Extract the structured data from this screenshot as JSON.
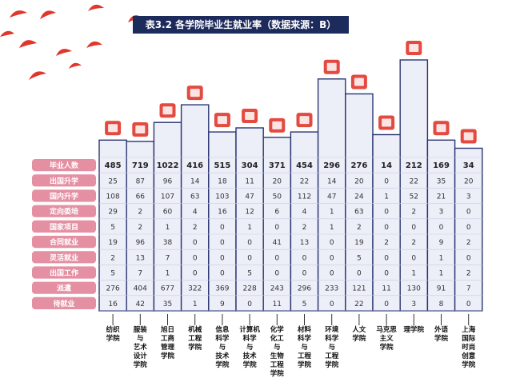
{
  "title": "表3.2 各学院毕业生就业率（数据来源：B）",
  "chart_data": {
    "type": "table",
    "title": "表3.2 各学院毕业生就业率（数据来源：B）",
    "categories": [
      "纺织\n学院",
      "服装\n与\n艺术\n设计\n学院",
      "旭日\n工商\n管理\n学院",
      "机械\n工程\n学院",
      "信息\n科学\n与\n技术\n学院",
      "计算机\n科学\n与\n技术\n学院",
      "化学\n化工\n与\n生物\n工程\n学院",
      "材料\n科学\n与\n工程\n学院",
      "环境\n科学\n与\n工程\n学院",
      "人文\n学院",
      "马克思\n主义\n学院",
      "理学院",
      "外语\n学院",
      "上海\n国际\n时尚\n创意\n学院"
    ],
    "rows": [
      {
        "name": "毕业人数",
        "values": [
          485,
          719,
          1022,
          416,
          515,
          304,
          371,
          454,
          296,
          276,
          14,
          212,
          169,
          34
        ]
      },
      {
        "name": "出国升学",
        "values": [
          25,
          87,
          96,
          14,
          18,
          11,
          20,
          22,
          14,
          20,
          0,
          22,
          35,
          20
        ]
      },
      {
        "name": "国内升学",
        "values": [
          108,
          66,
          107,
          63,
          103,
          47,
          50,
          112,
          47,
          24,
          1,
          52,
          21,
          3
        ]
      },
      {
        "name": "定向委培",
        "values": [
          29,
          2,
          60,
          4,
          16,
          12,
          6,
          4,
          1,
          63,
          0,
          2,
          3,
          0
        ]
      },
      {
        "name": "国家项目",
        "values": [
          5,
          2,
          1,
          2,
          0,
          1,
          0,
          2,
          1,
          2,
          0,
          0,
          0,
          0
        ]
      },
      {
        "name": "合同就业",
        "values": [
          19,
          96,
          38,
          0,
          0,
          0,
          41,
          13,
          0,
          19,
          2,
          2,
          9,
          2
        ]
      },
      {
        "name": "灵活就业",
        "values": [
          2,
          13,
          7,
          0,
          0,
          0,
          0,
          0,
          0,
          5,
          0,
          0,
          1,
          0
        ]
      },
      {
        "name": "出国工作",
        "values": [
          5,
          7,
          1,
          0,
          0,
          5,
          0,
          0,
          0,
          0,
          0,
          1,
          1,
          2
        ]
      },
      {
        "name": "派遣",
        "values": [
          276,
          404,
          677,
          322,
          369,
          228,
          243,
          296,
          233,
          121,
          11,
          130,
          91,
          7
        ]
      },
      {
        "name": "待就业",
        "values": [
          16,
          42,
          35,
          1,
          9,
          0,
          11,
          5,
          0,
          22,
          0,
          3,
          8,
          0
        ]
      }
    ],
    "column_tops": [
      118,
      120,
      92,
      66,
      106,
      100,
      114,
      106,
      28,
      50,
      110,
      0,
      118,
      130
    ],
    "colors": {
      "frame": "#2a3470",
      "fill": "#eceef8",
      "row_labels": "#e48fa2",
      "title_bg": "#1d2a5c",
      "accent": "#e0362b"
    },
    "icons": [
      "paint-roller-icon",
      "scissors-icon",
      "book-icon",
      "tools-icon",
      "computer-tower-icon",
      "monitor-icon",
      "flask-icon",
      "graduation-cap-icon",
      "factory-icon",
      "temple-icon",
      "open-book-icon",
      "atom-icon",
      "abc-icon",
      "lightbulb-icon"
    ]
  }
}
